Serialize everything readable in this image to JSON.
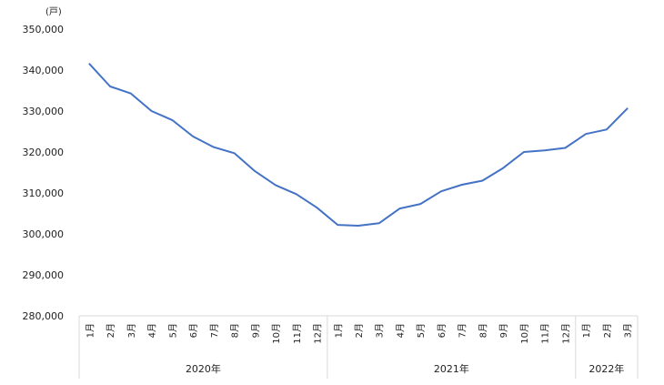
{
  "chart_data": {
    "type": "line",
    "unit_label": "(戸)",
    "yticks": [
      "350,000",
      "340,000",
      "330,000",
      "320,000",
      "310,000",
      "300,000",
      "290,000",
      "280,000"
    ],
    "ylim": [
      280000,
      350000
    ],
    "grid": false,
    "legend": "none",
    "line_color": "#4472C4",
    "categories": [
      "1月",
      "2月",
      "3月",
      "4月",
      "5月",
      "6月",
      "7月",
      "8月",
      "9月",
      "10月",
      "11月",
      "12月",
      "1月",
      "2月",
      "3月",
      "4月",
      "5月",
      "6月",
      "7月",
      "8月",
      "9月",
      "10月",
      "11月",
      "12月",
      "1月",
      "2月",
      "3月"
    ],
    "groups": [
      {
        "label": "2020年",
        "count": 12
      },
      {
        "label": "2021年",
        "count": 12
      },
      {
        "label": "2022年",
        "count": 3
      }
    ],
    "series": [
      {
        "values": [
          341500,
          336000,
          334300,
          330000,
          327800,
          323800,
          321200,
          319700,
          315300,
          311900,
          309700,
          306400,
          302200,
          302000,
          302600,
          306200,
          307300,
          310400,
          312000,
          313000,
          316100,
          320000,
          320400,
          321000,
          324400,
          325500,
          330600
        ]
      }
    ]
  }
}
